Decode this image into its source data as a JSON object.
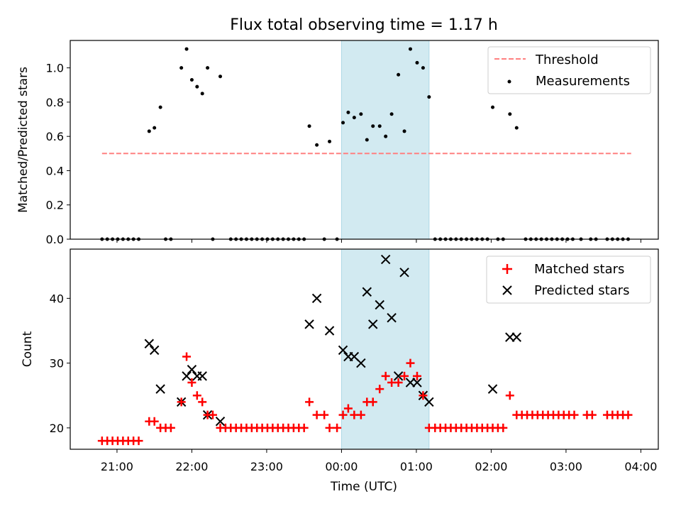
{
  "figure": {
    "title": "Flux total observing time = 1.17 h",
    "xlabel": "Time (UTC)"
  },
  "colors": {
    "shade": "#add8e6",
    "threshold": "#ff8080",
    "measurement": "#000000",
    "matched": "#ff0000",
    "predicted": "#000000"
  },
  "chart_data": [
    {
      "type": "scatter",
      "ylabel": "Matched/Predicted stars",
      "xlim": [
        -3.625,
        4.233
      ],
      "ylim": [
        0,
        1.16
      ],
      "yticks": [
        0.0,
        0.2,
        0.4,
        0.6,
        0.8,
        1.0
      ],
      "ytick_labels": [
        "0.0",
        "0.2",
        "0.4",
        "0.6",
        "0.8",
        "1.0"
      ],
      "shaded_x": [
        0.0,
        1.17
      ],
      "legend_position": "top-right",
      "legend": [
        "Threshold",
        "Measurements"
      ],
      "threshold": {
        "name": "Threshold",
        "style": "dashed",
        "x": [
          -3.2,
          3.87
        ],
        "y": 0.5
      },
      "series": [
        {
          "name": "Measurements",
          "marker": "dot",
          "points": [
            [
              -3.2,
              0
            ],
            [
              -3.13,
              0
            ],
            [
              -3.06,
              0
            ],
            [
              -2.99,
              0
            ],
            [
              -2.92,
              0
            ],
            [
              -2.85,
              0
            ],
            [
              -2.78,
              0
            ],
            [
              -2.71,
              0
            ],
            [
              -2.57,
              0.63
            ],
            [
              -2.5,
              0.65
            ],
            [
              -2.42,
              0.77
            ],
            [
              -2.35,
              0
            ],
            [
              -2.28,
              0
            ],
            [
              -2.14,
              1.0
            ],
            [
              -2.07,
              1.11
            ],
            [
              -2.0,
              0.93
            ],
            [
              -1.93,
              0.89
            ],
            [
              -1.86,
              0.85
            ],
            [
              -1.79,
              1.0
            ],
            [
              -1.72,
              0
            ],
            [
              -1.62,
              0.95
            ],
            [
              -1.48,
              0
            ],
            [
              -1.41,
              0
            ],
            [
              -1.34,
              0
            ],
            [
              -1.27,
              0
            ],
            [
              -1.2,
              0
            ],
            [
              -1.13,
              0
            ],
            [
              -1.06,
              0
            ],
            [
              -0.99,
              0
            ],
            [
              -0.92,
              0
            ],
            [
              -0.85,
              0
            ],
            [
              -0.78,
              0
            ],
            [
              -0.71,
              0
            ],
            [
              -0.64,
              0
            ],
            [
              -0.57,
              0
            ],
            [
              -0.5,
              0
            ],
            [
              -0.43,
              0.66
            ],
            [
              -0.33,
              0.55
            ],
            [
              -0.23,
              0
            ],
            [
              -0.16,
              0.57
            ],
            [
              -0.06,
              0
            ],
            [
              0.02,
              0.68
            ],
            [
              0.09,
              0.74
            ],
            [
              0.17,
              0.71
            ],
            [
              0.26,
              0.73
            ],
            [
              0.34,
              0.58
            ],
            [
              0.42,
              0.66
            ],
            [
              0.51,
              0.66
            ],
            [
              0.59,
              0.6
            ],
            [
              0.67,
              0.73
            ],
            [
              0.76,
              0.96
            ],
            [
              0.84,
              0.63
            ],
            [
              0.92,
              1.11
            ],
            [
              1.01,
              1.03
            ],
            [
              1.09,
              1.0
            ],
            [
              1.17,
              0.83
            ],
            [
              1.25,
              0
            ],
            [
              1.32,
              0
            ],
            [
              1.39,
              0
            ],
            [
              1.46,
              0
            ],
            [
              1.53,
              0
            ],
            [
              1.6,
              0
            ],
            [
              1.67,
              0
            ],
            [
              1.74,
              0
            ],
            [
              1.81,
              0
            ],
            [
              1.88,
              0
            ],
            [
              1.95,
              0
            ],
            [
              2.02,
              0.77
            ],
            [
              2.09,
              0
            ],
            [
              2.16,
              0
            ],
            [
              2.25,
              0.73
            ],
            [
              2.34,
              0.65
            ],
            [
              2.46,
              0
            ],
            [
              2.53,
              0
            ],
            [
              2.6,
              0
            ],
            [
              2.67,
              0
            ],
            [
              2.74,
              0
            ],
            [
              2.81,
              0
            ],
            [
              2.88,
              0
            ],
            [
              2.95,
              0
            ],
            [
              3.02,
              0
            ],
            [
              3.09,
              0
            ],
            [
              3.2,
              0
            ],
            [
              3.33,
              0
            ],
            [
              3.4,
              0
            ],
            [
              3.55,
              0
            ],
            [
              3.62,
              0
            ],
            [
              3.69,
              0
            ],
            [
              3.76,
              0
            ],
            [
              3.83,
              0
            ]
          ]
        }
      ]
    },
    {
      "type": "scatter",
      "ylabel": "Count",
      "xlim": [
        -3.625,
        4.233
      ],
      "ylim": [
        16.7,
        47.6
      ],
      "yticks": [
        20,
        30,
        40
      ],
      "ytick_labels": [
        "20",
        "30",
        "40"
      ],
      "xticks": [
        -3,
        -2,
        -1,
        0,
        1,
        2,
        3,
        4
      ],
      "xtick_labels": [
        "21:00",
        "22:00",
        "23:00",
        "00:00",
        "01:00",
        "02:00",
        "03:00",
        "04:00"
      ],
      "shaded_x": [
        0.0,
        1.17
      ],
      "legend_position": "top-right",
      "legend": [
        "Matched stars",
        "Predicted stars"
      ],
      "series": [
        {
          "name": "Matched stars",
          "marker": "plus",
          "points": [
            [
              -3.2,
              18
            ],
            [
              -3.13,
              18
            ],
            [
              -3.06,
              18
            ],
            [
              -2.99,
              18
            ],
            [
              -2.92,
              18
            ],
            [
              -2.85,
              18
            ],
            [
              -2.78,
              18
            ],
            [
              -2.71,
              18
            ],
            [
              -2.57,
              21
            ],
            [
              -2.5,
              21
            ],
            [
              -2.42,
              20
            ],
            [
              -2.35,
              20
            ],
            [
              -2.28,
              20
            ],
            [
              -2.14,
              24
            ],
            [
              -2.07,
              31
            ],
            [
              -2.0,
              27
            ],
            [
              -1.93,
              25
            ],
            [
              -1.86,
              24
            ],
            [
              -1.79,
              22
            ],
            [
              -1.72,
              22
            ],
            [
              -1.62,
              20
            ],
            [
              -1.55,
              20
            ],
            [
              -1.48,
              20
            ],
            [
              -1.41,
              20
            ],
            [
              -1.34,
              20
            ],
            [
              -1.27,
              20
            ],
            [
              -1.2,
              20
            ],
            [
              -1.13,
              20
            ],
            [
              -1.06,
              20
            ],
            [
              -0.99,
              20
            ],
            [
              -0.92,
              20
            ],
            [
              -0.85,
              20
            ],
            [
              -0.78,
              20
            ],
            [
              -0.71,
              20
            ],
            [
              -0.64,
              20
            ],
            [
              -0.57,
              20
            ],
            [
              -0.5,
              20
            ],
            [
              -0.43,
              24
            ],
            [
              -0.33,
              22
            ],
            [
              -0.23,
              22
            ],
            [
              -0.16,
              20
            ],
            [
              -0.06,
              20
            ],
            [
              0.02,
              22
            ],
            [
              0.09,
              23
            ],
            [
              0.17,
              22
            ],
            [
              0.26,
              22
            ],
            [
              0.34,
              24
            ],
            [
              0.42,
              24
            ],
            [
              0.51,
              26
            ],
            [
              0.59,
              28
            ],
            [
              0.67,
              27
            ],
            [
              0.76,
              27
            ],
            [
              0.84,
              28
            ],
            [
              0.92,
              30
            ],
            [
              1.01,
              28
            ],
            [
              1.09,
              25
            ],
            [
              1.17,
              20
            ],
            [
              1.25,
              20
            ],
            [
              1.32,
              20
            ],
            [
              1.39,
              20
            ],
            [
              1.46,
              20
            ],
            [
              1.53,
              20
            ],
            [
              1.6,
              20
            ],
            [
              1.67,
              20
            ],
            [
              1.74,
              20
            ],
            [
              1.81,
              20
            ],
            [
              1.88,
              20
            ],
            [
              1.95,
              20
            ],
            [
              2.02,
              20
            ],
            [
              2.09,
              20
            ],
            [
              2.16,
              20
            ],
            [
              2.25,
              25
            ],
            [
              2.34,
              22
            ],
            [
              2.41,
              22
            ],
            [
              2.48,
              22
            ],
            [
              2.55,
              22
            ],
            [
              2.62,
              22
            ],
            [
              2.69,
              22
            ],
            [
              2.76,
              22
            ],
            [
              2.83,
              22
            ],
            [
              2.9,
              22
            ],
            [
              2.97,
              22
            ],
            [
              3.04,
              22
            ],
            [
              3.11,
              22
            ],
            [
              3.28,
              22
            ],
            [
              3.35,
              22
            ],
            [
              3.55,
              22
            ],
            [
              3.62,
              22
            ],
            [
              3.69,
              22
            ],
            [
              3.76,
              22
            ],
            [
              3.83,
              22
            ]
          ]
        },
        {
          "name": "Predicted stars",
          "marker": "x",
          "points": [
            [
              -2.57,
              33
            ],
            [
              -2.5,
              32
            ],
            [
              -2.42,
              26
            ],
            [
              -2.14,
              24
            ],
            [
              -2.07,
              28
            ],
            [
              -2.0,
              29
            ],
            [
              -1.93,
              28
            ],
            [
              -1.86,
              28
            ],
            [
              -1.79,
              22
            ],
            [
              -1.62,
              21
            ],
            [
              -0.43,
              36
            ],
            [
              -0.33,
              40
            ],
            [
              -0.16,
              35
            ],
            [
              0.02,
              32
            ],
            [
              0.09,
              31
            ],
            [
              0.17,
              31
            ],
            [
              0.26,
              30
            ],
            [
              0.34,
              41
            ],
            [
              0.42,
              36
            ],
            [
              0.51,
              39
            ],
            [
              0.59,
              46
            ],
            [
              0.67,
              37
            ],
            [
              0.76,
              28
            ],
            [
              0.84,
              44
            ],
            [
              0.92,
              27
            ],
            [
              1.01,
              27
            ],
            [
              1.09,
              25
            ],
            [
              1.17,
              24
            ],
            [
              2.02,
              26
            ],
            [
              2.25,
              34
            ],
            [
              2.34,
              34
            ]
          ]
        }
      ]
    }
  ]
}
